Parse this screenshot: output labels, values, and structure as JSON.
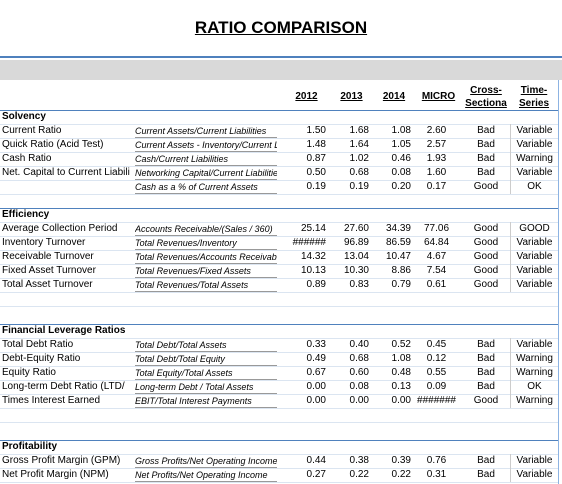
{
  "title": "RATIO COMPARISON",
  "columns": [
    {
      "line1": "2012"
    },
    {
      "line1": "2013"
    },
    {
      "line1": "2014"
    },
    {
      "line1": "MICRO"
    },
    {
      "line1": "Cross-",
      "line2": "Sectiona"
    },
    {
      "line1": "Time-",
      "line2": "Series"
    }
  ],
  "sections": [
    {
      "name": "Solvency",
      "rows": [
        {
          "label": "Current Ratio",
          "formula": "Current Assets/Current Liabilities",
          "values": [
            "1.50",
            "1.68",
            "1.08",
            "2.60"
          ],
          "cross": "Bad",
          "time": "Variable"
        },
        {
          "label": "Quick Ratio (Acid Test)",
          "formula": "Current Assets - Inventory/Current Lia",
          "values": [
            "1.48",
            "1.64",
            "1.05",
            "2.57"
          ],
          "cross": "Bad",
          "time": "Variable"
        },
        {
          "label": "Cash Ratio",
          "formula": "Cash/Current Liabilities",
          "values": [
            "0.87",
            "1.02",
            "0.46",
            "1.93"
          ],
          "cross": "Bad",
          "time": "Warning"
        },
        {
          "label": "Net. Capital to Current Liabili",
          "formula": "Networking Capital/Current Liabilities",
          "values": [
            "0.50",
            "0.68",
            "0.08",
            "1.60"
          ],
          "cross": "Bad",
          "time": "Variable"
        },
        {
          "formula": "Cash as a % of Current Assets",
          "values": [
            "0.19",
            "0.19",
            "0.20",
            "0.17"
          ],
          "cross": "Good",
          "time": "OK"
        }
      ]
    },
    {
      "name": "Efficiency",
      "rows": [
        {
          "label": "Average Collection Period",
          "formula": "Accounts Receivable/(Sales / 360)",
          "values": [
            "25.14",
            "27.60",
            "34.39",
            "77.06"
          ],
          "cross": "Good",
          "time": "GOOD"
        },
        {
          "label": "Inventory Turnover",
          "formula": "Total Revenues/Inventory",
          "values": [
            "######",
            "96.89",
            "86.59",
            "64.84"
          ],
          "cross": "Good",
          "time": "Variable"
        },
        {
          "label": "Receivable Turnover",
          "formula": "Total Revenues/Accounts Receivable",
          "values": [
            "14.32",
            "13.04",
            "10.47",
            "4.67"
          ],
          "cross": "Good",
          "time": "Variable"
        },
        {
          "label": "Fixed Asset Turnover",
          "formula": "Total Revenues/Fixed Assets",
          "values": [
            "10.13",
            "10.30",
            "8.86",
            "7.54"
          ],
          "cross": "Good",
          "time": "Variable"
        },
        {
          "label": "Total Asset Turnover",
          "formula": "Total Revenues/Total Assets",
          "values": [
            "0.89",
            "0.83",
            "0.79",
            "0.61"
          ],
          "cross": "Good",
          "time": "Variable"
        }
      ]
    },
    {
      "name": "Financial Leverage Ratios",
      "rows": [
        {
          "label": "Total Debt Ratio",
          "formula": "Total Debt/Total Assets",
          "values": [
            "0.33",
            "0.40",
            "0.52",
            "0.45"
          ],
          "cross": "Bad",
          "time": "Variable"
        },
        {
          "label": "Debt-Equity Ratio",
          "formula": "Total Debt/Total Equity",
          "values": [
            "0.49",
            "0.68",
            "1.08",
            "0.12"
          ],
          "cross": "Bad",
          "time": "Warning"
        },
        {
          "label": "Equity Ratio",
          "formula": "Total Equity/Total Assets",
          "values": [
            "0.67",
            "0.60",
            "0.48",
            "0.55"
          ],
          "cross": "Bad",
          "time": "Warning"
        },
        {
          "label": "Long-term Debt Ratio (LTD/",
          "formula": "Long-term Debt / Total Assets",
          "values": [
            "0.00",
            "0.08",
            "0.13",
            "0.09"
          ],
          "cross": "Bad",
          "time": "OK"
        },
        {
          "label": "Times Interest Earned",
          "formula": "EBIT/Total Interest Payments",
          "values": [
            "0.00",
            "0.00",
            "0.00",
            "#######"
          ],
          "cross": "Good",
          "time": "Warning"
        }
      ]
    },
    {
      "name": "Profitability",
      "rows": [
        {
          "label": "Gross Profit Margin (GPM)",
          "formula": "Gross Profits/Net Operating Income",
          "values": [
            "0.44",
            "0.38",
            "0.39",
            "0.76"
          ],
          "cross": "Bad",
          "time": "Variable"
        },
        {
          "label": "Net Profit Margin (NPM)",
          "formula": "Net Profits/Net Operating Income",
          "values": [
            "0.27",
            "0.22",
            "0.22",
            "0.31"
          ],
          "cross": "Bad",
          "time": "Variable"
        }
      ]
    }
  ]
}
